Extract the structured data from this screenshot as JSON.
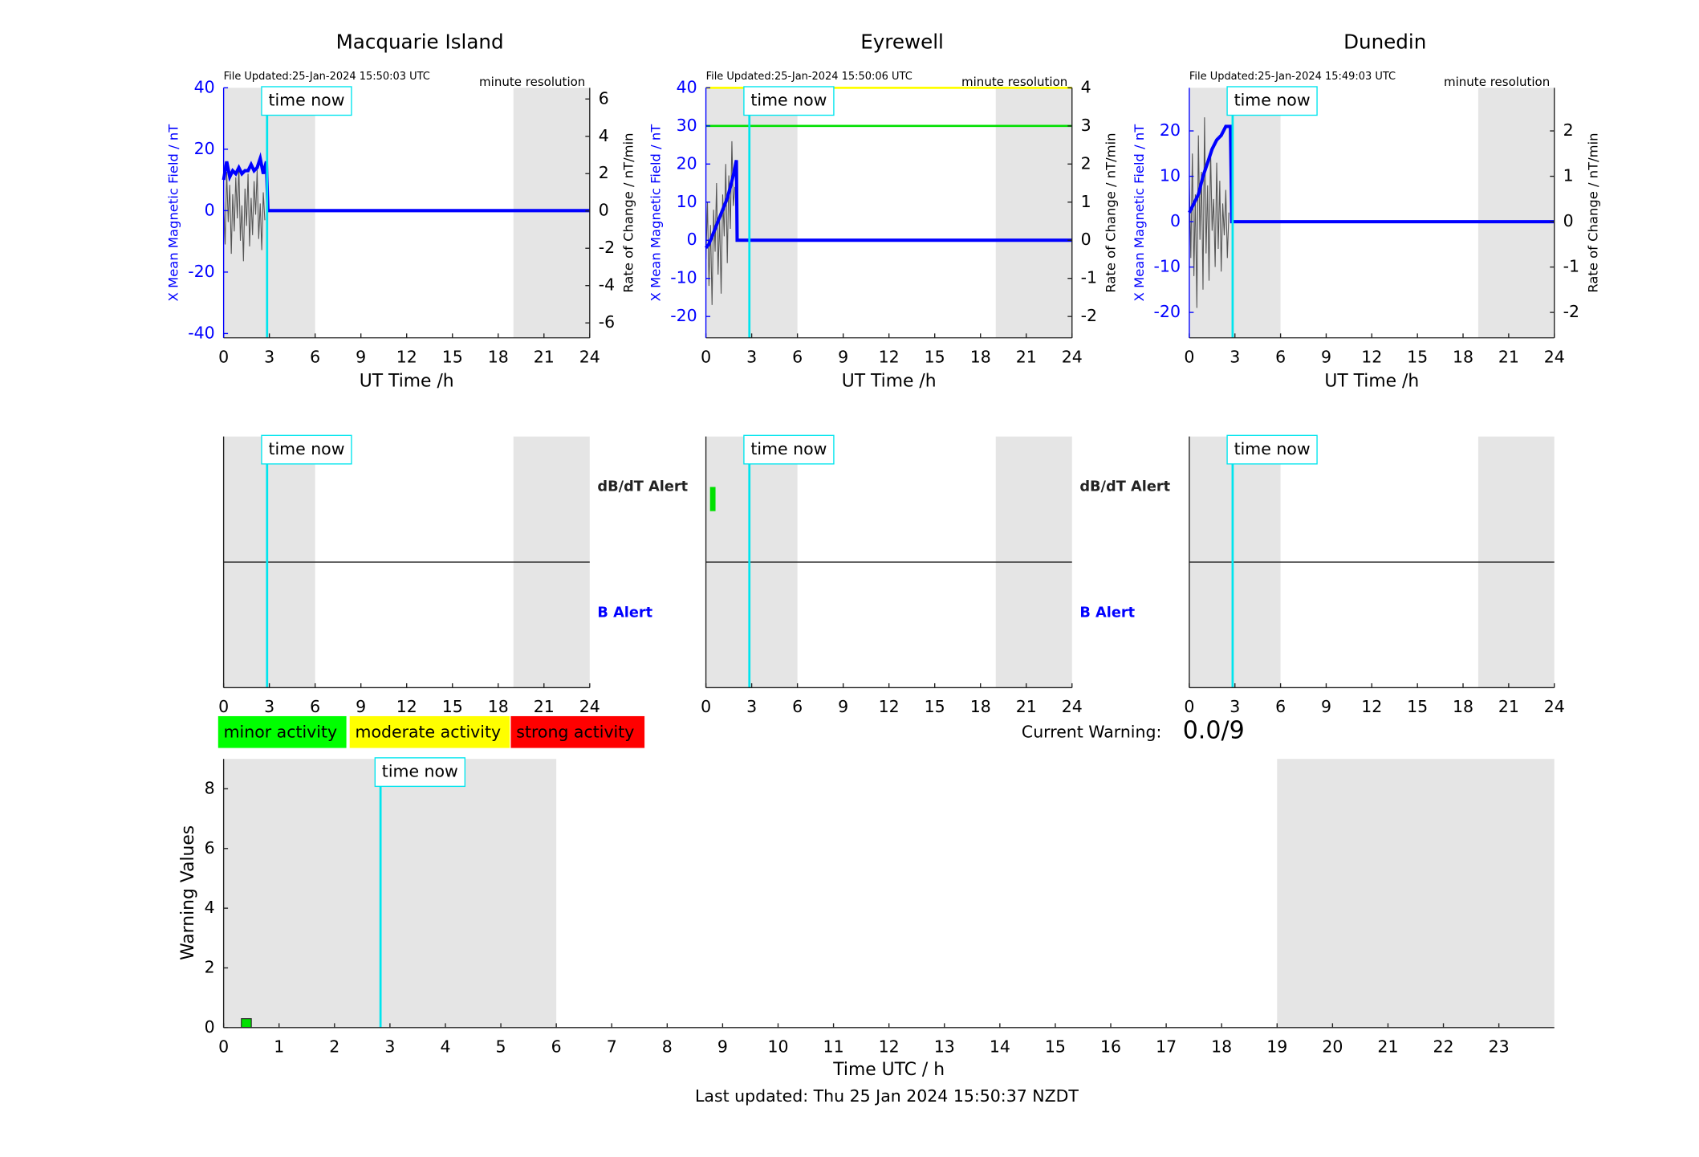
{
  "chart_data": [
    {
      "type": "line",
      "title": "Macquarie Island",
      "note_left": "File Updated:25-Jan-2024 15:50:03 UTC",
      "note_right": "minute resolution",
      "xlabel": "UT Time /h",
      "ylabel": "X Mean Magnetic Field / nT",
      "y2label": "Rate of Change / nT/min",
      "xlim": [
        0,
        24
      ],
      "xticks": [
        0,
        3,
        6,
        9,
        12,
        15,
        18,
        21,
        24
      ],
      "ylim": [
        -41.4,
        40
      ],
      "yticks": [
        -40,
        -20,
        0,
        20,
        40
      ],
      "y2lim": [
        -6.8,
        6.6
      ],
      "y2ticks": [
        -6,
        -4,
        -2,
        0,
        2,
        4,
        6
      ],
      "shaded_ranges": [
        [
          0,
          6
        ],
        [
          19,
          24
        ]
      ],
      "now": {
        "x": 2.85,
        "label": "time now"
      },
      "series": [
        {
          "color": "#555555",
          "axis": "y2",
          "x": [
            0,
            0.1,
            0.2,
            0.3,
            0.4,
            0.5,
            0.6,
            0.7,
            0.8,
            0.9,
            1,
            1.1,
            1.2,
            1.3,
            1.4,
            1.5,
            1.6,
            1.7,
            1.8,
            1.9,
            2,
            2.1,
            2.2,
            2.3,
            2.4,
            2.5,
            2.6,
            2.7
          ],
          "values": [
            0.5,
            -1.8,
            2.1,
            -0.6,
            1.4,
            -2.3,
            0.9,
            -1.1,
            1.8,
            -0.4,
            2.4,
            -1.6,
            0.3,
            -2.7,
            1.2,
            -0.8,
            2.0,
            -1.9,
            0.7,
            -1.3,
            1.6,
            -0.2,
            2.2,
            -1.5,
            0.4,
            -2.1,
            1.0,
            -0.5
          ]
        },
        {
          "color": "#0000ff",
          "x": [
            0,
            0.2,
            0.4,
            0.6,
            0.8,
            1,
            1.2,
            1.4,
            1.6,
            1.8,
            2,
            2.2,
            2.4,
            2.6,
            2.8,
            2.9,
            24
          ],
          "values": [
            10,
            16,
            11,
            13,
            12,
            14,
            12,
            13,
            13,
            15,
            13,
            14,
            17,
            12,
            16,
            0,
            0
          ]
        }
      ]
    },
    {
      "type": "line",
      "title": "Eyrewell",
      "note_left": "File Updated:25-Jan-2024 15:50:06 UTC",
      "note_right": "minute resolution",
      "xlabel": "UT Time /h",
      "ylabel": "X Mean Magnetic Field / nT",
      "y2label": "Rate of Change / nT/min",
      "xlim": [
        0,
        24
      ],
      "xticks": [
        0,
        3,
        6,
        9,
        12,
        15,
        18,
        21,
        24
      ],
      "ylim": [
        -25.6,
        40
      ],
      "yticks": [
        -20,
        -10,
        0,
        10,
        20,
        30,
        40
      ],
      "y2lim": [
        -2.56,
        4
      ],
      "y2ticks": [
        -2,
        -1,
        0,
        1,
        2,
        3,
        4
      ],
      "shaded_ranges": [
        [
          0,
          6
        ],
        [
          19,
          24
        ]
      ],
      "now": {
        "x": 2.85,
        "label": "time now"
      },
      "thresholds": [
        {
          "value": 40,
          "color": "#ffff00"
        },
        {
          "value": 30,
          "color": "#00e000"
        }
      ],
      "series": [
        {
          "color": "#555555",
          "axis": "y2",
          "x": [
            0,
            0.1,
            0.2,
            0.3,
            0.4,
            0.5,
            0.6,
            0.7,
            0.8,
            0.9,
            1,
            1.1,
            1.2,
            1.3,
            1.4,
            1.5,
            1.6,
            1.7,
            1.8,
            1.9
          ],
          "values": [
            -0.5,
            1.0,
            -1.2,
            0.4,
            -1.7,
            0.8,
            -0.3,
            1.5,
            -0.9,
            0.6,
            -1.4,
            1.2,
            0.1,
            2.0,
            -0.6,
            1.7,
            0.3,
            2.6,
            0.9,
            1.4
          ]
        },
        {
          "color": "#0000ff",
          "x": [
            0,
            0.2,
            0.4,
            0.6,
            0.8,
            1,
            1.2,
            1.4,
            1.6,
            1.8,
            2,
            2.05,
            24
          ],
          "values": [
            -2,
            -1,
            1,
            3,
            5,
            7,
            9,
            11,
            14,
            17,
            21,
            0,
            0
          ]
        }
      ]
    },
    {
      "type": "line",
      "title": "Dunedin",
      "note_left": "File Updated:25-Jan-2024 15:49:03 UTC",
      "note_right": "minute resolution",
      "xlabel": "UT Time /h",
      "ylabel": "X Mean Magnetic Field / nT",
      "y2label": "Rate of Change / nT/min",
      "xlim": [
        0,
        24
      ],
      "xticks": [
        0,
        3,
        6,
        9,
        12,
        15,
        18,
        21,
        24
      ],
      "ylim": [
        -25.6,
        29.5
      ],
      "yticks": [
        -20,
        -10,
        0,
        10,
        20
      ],
      "y2lim": [
        -2.56,
        2.95
      ],
      "y2ticks": [
        -2,
        -1,
        0,
        1,
        2
      ],
      "shaded_ranges": [
        [
          0,
          6
        ],
        [
          19,
          24
        ]
      ],
      "now": {
        "x": 2.85,
        "label": "time now"
      },
      "series": [
        {
          "color": "#555555",
          "axis": "y2",
          "x": [
            0,
            0.1,
            0.2,
            0.3,
            0.4,
            0.5,
            0.6,
            0.7,
            0.8,
            0.9,
            1,
            1.1,
            1.2,
            1.3,
            1.4,
            1.5,
            1.6,
            1.7,
            1.8,
            1.9,
            2,
            2.1,
            2.2,
            2.3,
            2.4,
            2.5,
            2.6
          ],
          "values": [
            0.9,
            -0.8,
            1.5,
            -1.2,
            0.6,
            -1.9,
            1.9,
            -0.4,
            1.1,
            -1.5,
            2.3,
            -0.7,
            0.8,
            -1.3,
            1.6,
            -0.2,
            0.5,
            -1.0,
            1.3,
            -0.6,
            0.9,
            -1.1,
            0.4,
            -0.3,
            0.7,
            -0.8,
            0.2
          ]
        },
        {
          "color": "#0000ff",
          "x": [
            0,
            0.3,
            0.6,
            0.9,
            1.2,
            1.5,
            1.8,
            2.1,
            2.4,
            2.7,
            2.8,
            24
          ],
          "values": [
            2,
            4,
            6,
            10,
            13,
            16,
            18,
            19,
            21,
            21,
            0,
            0
          ]
        }
      ]
    },
    {
      "type": "alert",
      "xlim": [
        0,
        24
      ],
      "xticks": [
        0,
        3,
        6,
        9,
        12,
        15,
        18,
        21,
        24
      ],
      "shaded_ranges": [
        [
          0,
          6
        ],
        [
          19,
          24
        ]
      ],
      "now": {
        "x": 2.85,
        "label": "time now"
      },
      "row_labels": [
        "dB/dT Alert",
        "B Alert"
      ],
      "dbdt_alerts": []
    },
    {
      "type": "alert",
      "xlim": [
        0,
        24
      ],
      "xticks": [
        0,
        3,
        6,
        9,
        12,
        15,
        18,
        21,
        24
      ],
      "shaded_ranges": [
        [
          0,
          6
        ],
        [
          19,
          24
        ]
      ],
      "now": {
        "x": 2.85,
        "label": "time now"
      },
      "row_labels": [
        "dB/dT Alert",
        "B Alert"
      ],
      "dbdt_alerts": [
        0.45
      ],
      "alert_color": "#00e000"
    },
    {
      "type": "alert",
      "xlim": [
        0,
        24
      ],
      "xticks": [
        0,
        3,
        6,
        9,
        12,
        15,
        18,
        21,
        24
      ],
      "shaded_ranges": [
        [
          0,
          6
        ],
        [
          19,
          24
        ]
      ],
      "now": {
        "x": 2.85,
        "label": "time now"
      },
      "dbdt_alerts": []
    },
    {
      "type": "bar",
      "xlabel": "Time UTC / h",
      "ylabel": "Warning Values",
      "xlim": [
        0,
        24
      ],
      "xticks": [
        0,
        1,
        2,
        3,
        4,
        5,
        6,
        7,
        8,
        9,
        10,
        11,
        12,
        13,
        14,
        15,
        16,
        17,
        18,
        19,
        20,
        21,
        22,
        23
      ],
      "ylim": [
        0,
        9
      ],
      "yticks": [
        0,
        2,
        4,
        6,
        8
      ],
      "shaded_ranges": [
        [
          0,
          6
        ],
        [
          19,
          24
        ]
      ],
      "now": {
        "x": 2.83,
        "label": "time now"
      },
      "x": [
        0.41
      ],
      "values": [
        0.3
      ],
      "color": "#00e000",
      "levels": [
        {
          "label": "minor activity",
          "color": "#00ff00"
        },
        {
          "label": "moderate activity",
          "color": "#ffff00"
        },
        {
          "label": "strong activity",
          "color": "#ff0000"
        }
      ],
      "current_warning_label": "Current Warning:",
      "current_warning": "0.0/9",
      "footer": "Last updated: Thu 25 Jan 2024 15:50:37 NZDT"
    }
  ]
}
